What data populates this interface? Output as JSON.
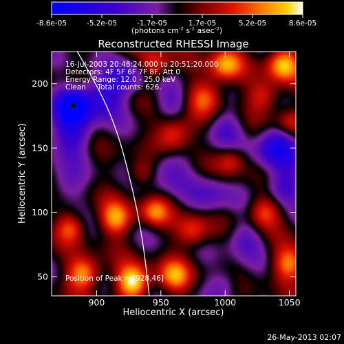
{
  "chart_data": {
    "type": "heatmap",
    "title": "Reconstructed RHESSI Image",
    "xlabel": "Heliocentric X (arcsec)",
    "ylabel": "Heliocentric Y (arcsec)",
    "xlim": [
      865,
      1055
    ],
    "ylim": [
      35,
      225
    ],
    "x_ticks": [
      900,
      950,
      1000,
      1050
    ],
    "y_ticks": [
      50,
      100,
      150,
      200
    ],
    "colorbar": {
      "ticks": [
        "-8.6e-05",
        "-5.2e-05",
        "-1.7e-05",
        "1.7e-05",
        "5.2e-05",
        "8.6e-05"
      ],
      "unit_label": "(photons cm",
      "unit_exp1": "-2",
      "unit_mid": " s",
      "unit_exp2": "-1",
      "unit_end": " asec",
      "unit_exp3": "-2",
      "unit_close": ")",
      "range": [
        -8.6e-05,
        8.6e-05
      ]
    },
    "annotations": {
      "time": "16-Jul-2003 20:48:24.000 to 20:51:20.000",
      "detectors": "Detectors: 4F 5F 6F 7F 8F, Att 0",
      "energy": "Energy Range: 12.0 - 25.0 keV",
      "clean": "Clean     Total counts: 626.",
      "peak": "Position of Peak = [928,46]"
    },
    "peak_position": [
      928,
      46
    ],
    "min_marker": [
      882,
      183
    ],
    "limb_curve": [
      [
        885,
        225
      ],
      [
        905,
        190
      ],
      [
        917,
        160
      ],
      [
        925,
        130
      ],
      [
        932,
        100
      ],
      [
        937,
        70
      ],
      [
        941,
        35
      ]
    ],
    "blobs": [
      {
        "x": 882,
        "y": 183,
        "amp": -1.0,
        "sigma": 10
      },
      {
        "x": 880,
        "y": 160,
        "amp": -0.55,
        "sigma": 12
      },
      {
        "x": 905,
        "y": 190,
        "amp": -0.6,
        "sigma": 11
      },
      {
        "x": 925,
        "y": 205,
        "amp": -0.45,
        "sigma": 10
      },
      {
        "x": 1040,
        "y": 150,
        "amp": -0.75,
        "sigma": 11
      },
      {
        "x": 1045,
        "y": 120,
        "amp": -0.55,
        "sigma": 10
      },
      {
        "x": 955,
        "y": 135,
        "amp": -0.4,
        "sigma": 12
      },
      {
        "x": 990,
        "y": 115,
        "amp": -0.35,
        "sigma": 11
      },
      {
        "x": 1000,
        "y": 165,
        "amp": -0.35,
        "sigma": 10
      },
      {
        "x": 875,
        "y": 120,
        "amp": -0.3,
        "sigma": 10
      },
      {
        "x": 960,
        "y": 185,
        "amp": -0.35,
        "sigma": 10
      },
      {
        "x": 1015,
        "y": 80,
        "amp": -0.35,
        "sigma": 10
      },
      {
        "x": 1000,
        "y": 45,
        "amp": -0.3,
        "sigma": 9
      },
      {
        "x": 928,
        "y": 46,
        "amp": 1.0,
        "sigma": 9
      },
      {
        "x": 890,
        "y": 52,
        "amp": 0.8,
        "sigma": 9
      },
      {
        "x": 960,
        "y": 50,
        "amp": 0.7,
        "sigma": 9
      },
      {
        "x": 915,
        "y": 95,
        "amp": 0.75,
        "sigma": 9
      },
      {
        "x": 945,
        "y": 100,
        "amp": 0.6,
        "sigma": 8
      },
      {
        "x": 880,
        "y": 88,
        "amp": 0.55,
        "sigma": 8
      },
      {
        "x": 960,
        "y": 160,
        "amp": 0.7,
        "sigma": 10
      },
      {
        "x": 985,
        "y": 190,
        "amp": 0.6,
        "sigma": 10
      },
      {
        "x": 1000,
        "y": 215,
        "amp": 0.75,
        "sigma": 9
      },
      {
        "x": 1045,
        "y": 215,
        "amp": 0.85,
        "sigma": 9
      },
      {
        "x": 1030,
        "y": 190,
        "amp": 0.5,
        "sigma": 9
      },
      {
        "x": 975,
        "y": 85,
        "amp": 0.55,
        "sigma": 9
      },
      {
        "x": 1050,
        "y": 60,
        "amp": 0.7,
        "sigma": 9
      },
      {
        "x": 1030,
        "y": 100,
        "amp": 0.6,
        "sigma": 9
      },
      {
        "x": 1005,
        "y": 140,
        "amp": 0.45,
        "sigma": 8
      },
      {
        "x": 945,
        "y": 215,
        "amp": 0.55,
        "sigma": 9
      },
      {
        "x": 1050,
        "y": 170,
        "amp": 0.45,
        "sigma": 8
      },
      {
        "x": 935,
        "y": 130,
        "amp": 0.4,
        "sigma": 8
      }
    ]
  },
  "footer": {
    "timestamp": "26-May-2013 02:07"
  }
}
